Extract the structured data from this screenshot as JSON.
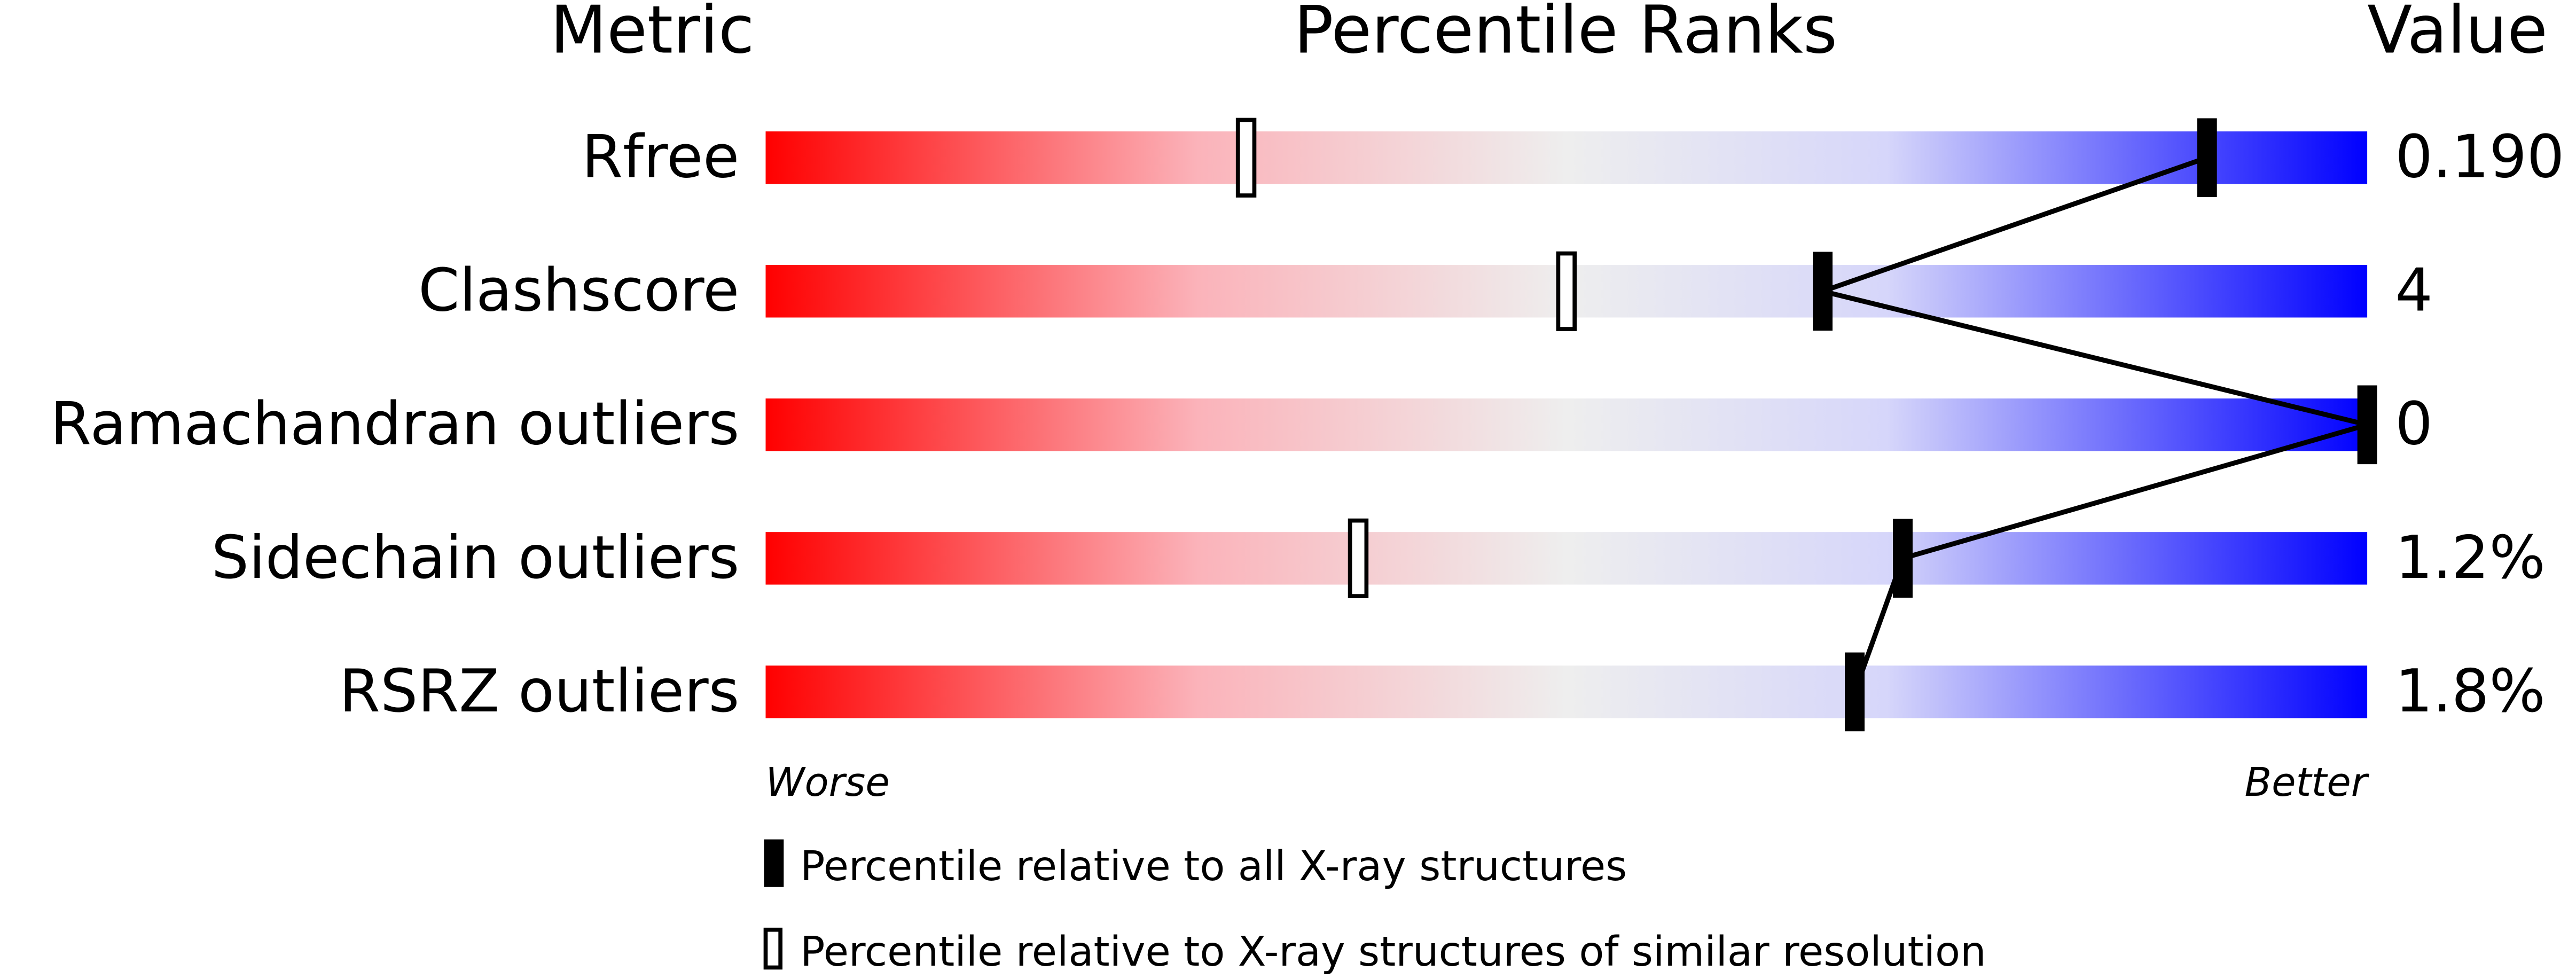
{
  "chart_data": {
    "type": "percentile-slider",
    "column_headers": [
      "Metric",
      "Percentile Ranks",
      "Value"
    ],
    "categories": [
      "Rfree",
      "Clashscore",
      "Ramachandran outliers",
      "Sidechain outliers",
      "RSRZ outliers"
    ],
    "metric_values": [
      "0.190",
      "4",
      "0",
      "1.2%",
      "1.8%"
    ],
    "series": [
      {
        "name": "Percentile relative to all X-ray structures",
        "color": "#000000",
        "values": [
          90,
          66,
          100,
          71,
          68
        ]
      },
      {
        "name": "Percentile relative to X-ray structures of similar resolution",
        "color": "#ffffff",
        "values": [
          30,
          50,
          null,
          37,
          null
        ]
      }
    ],
    "xlim": [
      0,
      100
    ],
    "x_end_labels": [
      "Worse",
      "Better"
    ]
  }
}
